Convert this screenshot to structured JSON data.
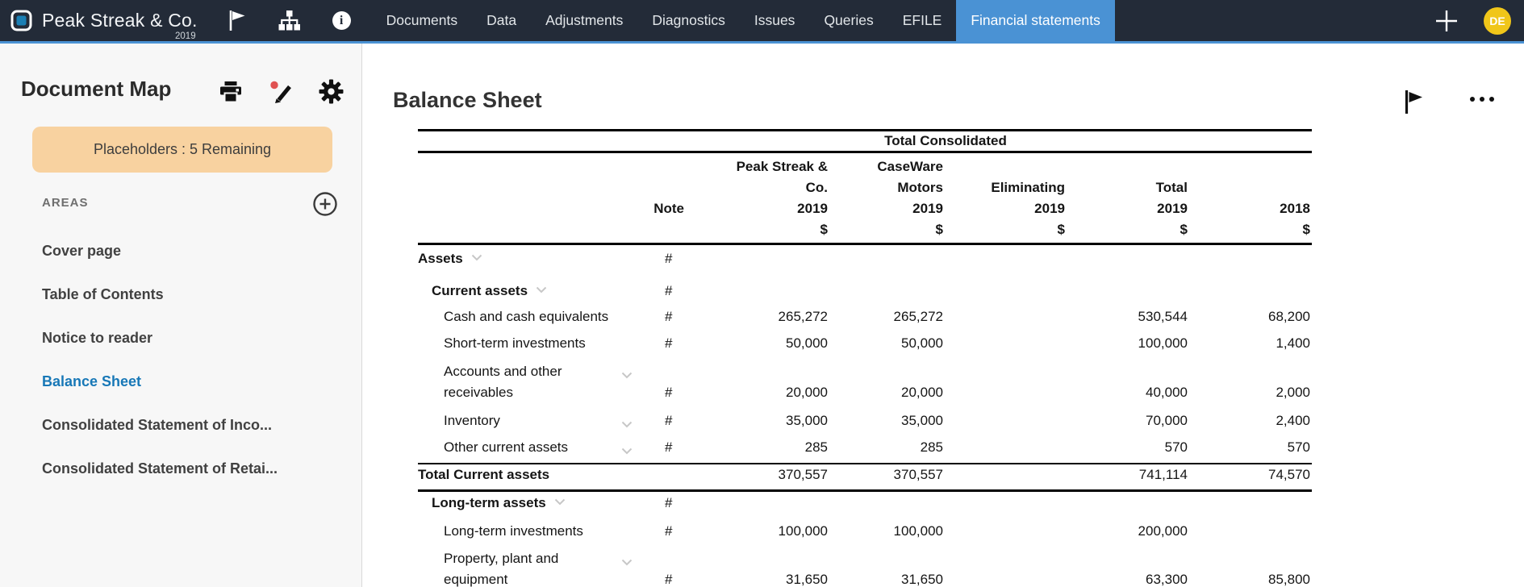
{
  "navbar": {
    "brand": "Peak Streak & Co.",
    "brand_year": "2019",
    "menu": [
      "Documents",
      "Data",
      "Adjustments",
      "Diagnostics",
      "Issues",
      "Queries",
      "EFILE",
      "Financial statements"
    ],
    "active_menu": "Financial statements",
    "avatar_initials": "DE",
    "icons": [
      "flag-icon",
      "hierarchy-icon",
      "info-icon",
      "add-icon"
    ],
    "colors": {
      "bg": "#232b38",
      "accent": "#4a92d4",
      "avatar_bg": "#f0c619"
    }
  },
  "sidebar": {
    "title": "Document Map",
    "tool_icons": [
      "print-icon",
      "annotate-icon",
      "settings-icon"
    ],
    "placeholder_badge": "Placeholders : 5 Remaining",
    "section_label": "AREAS",
    "section_add_icon": "add-circle-icon",
    "items": [
      {
        "label": "Cover page",
        "active": false
      },
      {
        "label": "Table of Contents",
        "active": false
      },
      {
        "label": "Notice to reader",
        "active": false
      },
      {
        "label": "Balance Sheet",
        "active": true
      },
      {
        "label": "Consolidated Statement of Inco...",
        "active": false
      },
      {
        "label": "Consolidated Statement of Retai...",
        "active": false
      }
    ],
    "colors": {
      "badge_bg": "#f8d2a0",
      "active_item": "#1878b7"
    }
  },
  "content": {
    "title": "Balance Sheet",
    "action_icons": [
      "flag-icon",
      "more-icon"
    ],
    "table": {
      "group_header": "Total Consolidated",
      "columns": [
        {
          "name": "note",
          "lines": [
            "Note",
            ""
          ]
        },
        {
          "name": "peak-streak-co",
          "lines": [
            "Peak Streak &",
            "Co.",
            "2019",
            "$"
          ]
        },
        {
          "name": "caseware-motors",
          "lines": [
            "CaseWare",
            "Motors",
            "2019",
            "$"
          ]
        },
        {
          "name": "eliminating",
          "lines": [
            "Eliminating",
            "2019",
            "$"
          ]
        },
        {
          "name": "total",
          "lines": [
            "Total",
            "2019",
            "$"
          ]
        },
        {
          "name": "prior-year",
          "lines": [
            "2018",
            "$"
          ]
        }
      ],
      "rows": [
        {
          "label": "Assets",
          "indent": 0,
          "bold": true,
          "chevron": "after",
          "note": "#",
          "values": [
            "",
            "",
            "",
            "",
            ""
          ]
        },
        {
          "label": "Current assets",
          "indent": 1,
          "bold": true,
          "chevron": "after",
          "note": "#",
          "values": [
            "",
            "",
            "",
            "",
            ""
          ]
        },
        {
          "label": "Cash and cash equivalents",
          "indent": 2,
          "bold": false,
          "chevron": "",
          "note": "#",
          "values": [
            "265,272",
            "265,272",
            "",
            "530,544",
            "68,200"
          ]
        },
        {
          "label": "Short-term investments",
          "indent": 2,
          "bold": false,
          "chevron": "",
          "note": "#",
          "values": [
            "50,000",
            "50,000",
            "",
            "100,000",
            "1,400"
          ]
        },
        {
          "label": "Accounts and other receivables",
          "indent": 2,
          "bold": false,
          "chevron": "slot",
          "twoline": true,
          "note": "#",
          "values": [
            "20,000",
            "20,000",
            "",
            "40,000",
            "2,000"
          ]
        },
        {
          "label": "Inventory",
          "indent": 2,
          "bold": false,
          "chevron": "slot",
          "note": "#",
          "values": [
            "35,000",
            "35,000",
            "",
            "70,000",
            "2,400"
          ]
        },
        {
          "label": "Other current assets",
          "indent": 2,
          "bold": false,
          "chevron": "slot",
          "note": "#",
          "values": [
            "285",
            "285",
            "",
            "570",
            "570"
          ],
          "rule_below": "medium"
        },
        {
          "label": "Total Current assets",
          "indent": 0,
          "bold": true,
          "chevron": "",
          "note": "",
          "values": [
            "370,557",
            "370,557",
            "",
            "741,114",
            "74,570"
          ],
          "rule_below": "thick"
        },
        {
          "label": "Long-term assets",
          "indent": 1,
          "bold": true,
          "chevron": "after",
          "note": "#",
          "values": [
            "",
            "",
            "",
            "",
            ""
          ]
        },
        {
          "label": "Long-term investments",
          "indent": 2,
          "bold": false,
          "chevron": "",
          "note": "#",
          "values": [
            "100,000",
            "100,000",
            "",
            "200,000",
            ""
          ]
        },
        {
          "label": "Property, plant and equipment",
          "indent": 2,
          "bold": false,
          "chevron": "slot",
          "twoline": true,
          "note": "#",
          "values": [
            "31,650",
            "31,650",
            "",
            "63,300",
            "85,800"
          ]
        }
      ]
    }
  }
}
